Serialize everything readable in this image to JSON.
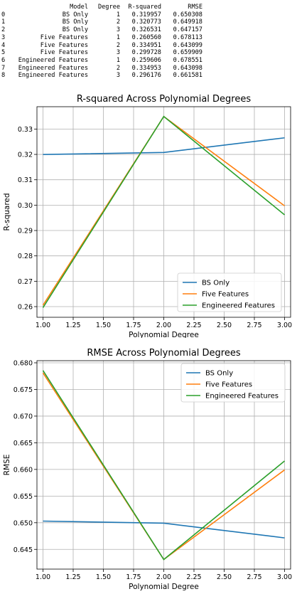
{
  "table": {
    "columns": [
      "Model",
      "Degree",
      "R-squared",
      "RMSE"
    ],
    "rows": [
      {
        "index": "0",
        "model": "BS Only",
        "degree": "1",
        "r2": "0.319957",
        "rmse": "0.650308"
      },
      {
        "index": "1",
        "model": "BS Only",
        "degree": "2",
        "r2": "0.320773",
        "rmse": "0.649918"
      },
      {
        "index": "2",
        "model": "BS Only",
        "degree": "3",
        "r2": "0.326531",
        "rmse": "0.647157"
      },
      {
        "index": "3",
        "model": "Five Features",
        "degree": "1",
        "r2": "0.260560",
        "rmse": "0.678113"
      },
      {
        "index": "4",
        "model": "Five Features",
        "degree": "2",
        "r2": "0.334951",
        "rmse": "0.643099"
      },
      {
        "index": "5",
        "model": "Five Features",
        "degree": "3",
        "r2": "0.299728",
        "rmse": "0.659909"
      },
      {
        "index": "6",
        "model": "Engineered Features",
        "degree": "1",
        "r2": "0.259606",
        "rmse": "0.678551"
      },
      {
        "index": "7",
        "model": "Engineered Features",
        "degree": "2",
        "r2": "0.334953",
        "rmse": "0.643098"
      },
      {
        "index": "8",
        "model": "Engineered Features",
        "degree": "3",
        "r2": "0.296176",
        "rmse": "0.661581"
      }
    ]
  },
  "colors": {
    "bs_only": "#1f77b4",
    "five_features": "#ff7f0e",
    "engineered_features": "#2ca02c",
    "grid": "#b0b0b0"
  },
  "chart_data": [
    {
      "type": "line",
      "title": "R-squared Across Polynomial Degrees",
      "xlabel": "Polynomial Degree",
      "ylabel": "R-squared",
      "x": [
        1,
        2,
        3
      ],
      "xlim": [
        0.95,
        3.05
      ],
      "ylim": [
        0.2558,
        0.3388
      ],
      "xticks": [
        1.0,
        1.25,
        1.5,
        1.75,
        2.0,
        2.25,
        2.5,
        2.75,
        3.0
      ],
      "xtick_labels": [
        "1.00",
        "1.25",
        "1.50",
        "1.75",
        "2.00",
        "2.25",
        "2.50",
        "2.75",
        "3.00"
      ],
      "yticks": [
        0.26,
        0.27,
        0.28,
        0.29,
        0.3,
        0.31,
        0.32,
        0.33
      ],
      "ytick_labels": [
        "0.26",
        "0.27",
        "0.28",
        "0.29",
        "0.30",
        "0.31",
        "0.32",
        "0.33"
      ],
      "grid": true,
      "legend": "lower-right",
      "series": [
        {
          "name": "BS Only",
          "values": [
            0.319957,
            0.320773,
            0.326531
          ],
          "color": "#1f77b4"
        },
        {
          "name": "Five Features",
          "values": [
            0.26056,
            0.334951,
            0.299728
          ],
          "color": "#ff7f0e"
        },
        {
          "name": "Engineered Features",
          "values": [
            0.259606,
            0.334953,
            0.296176
          ],
          "color": "#2ca02c"
        }
      ]
    },
    {
      "type": "line",
      "title": "RMSE Across Polynomial Degrees",
      "xlabel": "Polynomial Degree",
      "ylabel": "RMSE",
      "x": [
        1,
        2,
        3
      ],
      "xlim": [
        0.95,
        3.05
      ],
      "ylim": [
        0.6413,
        0.6804
      ],
      "xticks": [
        1.0,
        1.25,
        1.5,
        1.75,
        2.0,
        2.25,
        2.5,
        2.75,
        3.0
      ],
      "xtick_labels": [
        "1.00",
        "1.25",
        "1.50",
        "1.75",
        "2.00",
        "2.25",
        "2.50",
        "2.75",
        "3.00"
      ],
      "yticks": [
        0.645,
        0.65,
        0.655,
        0.66,
        0.665,
        0.67,
        0.675,
        0.68
      ],
      "ytick_labels": [
        "0.645",
        "0.650",
        "0.655",
        "0.660",
        "0.665",
        "0.670",
        "0.675",
        "0.680"
      ],
      "grid": true,
      "legend": "upper-right",
      "series": [
        {
          "name": "BS Only",
          "values": [
            0.650308,
            0.649918,
            0.647157
          ],
          "color": "#1f77b4"
        },
        {
          "name": "Five Features",
          "values": [
            0.678113,
            0.643099,
            0.659909
          ],
          "color": "#ff7f0e"
        },
        {
          "name": "Engineered Features",
          "values": [
            0.678551,
            0.643098,
            0.661581
          ],
          "color": "#2ca02c"
        }
      ]
    }
  ]
}
